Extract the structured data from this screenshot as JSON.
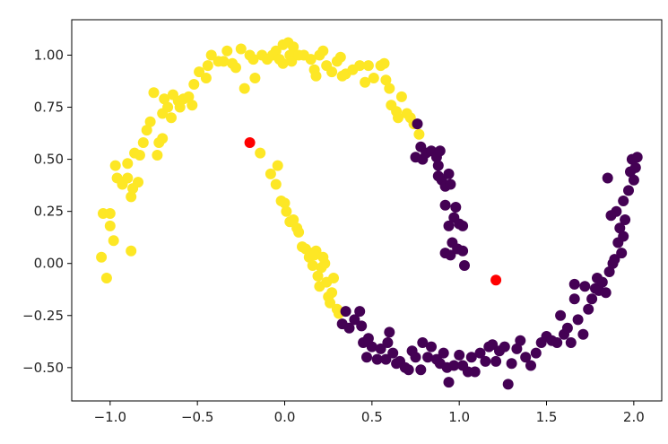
{
  "chart_data": {
    "type": "scatter",
    "title": "",
    "xlabel": "",
    "ylabel": "",
    "xlim": [
      -1.22,
      2.16
    ],
    "ylim": [
      -0.66,
      1.17
    ],
    "grid": false,
    "legend": "none",
    "x_ticks": [
      {
        "value": -1.0,
        "label": "−1.0"
      },
      {
        "value": -0.5,
        "label": "−0.5"
      },
      {
        "value": 0.0,
        "label": "0.0"
      },
      {
        "value": 0.5,
        "label": "0.5"
      },
      {
        "value": 1.0,
        "label": "1.0"
      },
      {
        "value": 1.5,
        "label": "1.5"
      },
      {
        "value": 2.0,
        "label": "2.0"
      }
    ],
    "y_ticks": [
      {
        "value": -0.5,
        "label": "−0.50"
      },
      {
        "value": -0.25,
        "label": "−0.25"
      },
      {
        "value": 0.0,
        "label": "0.00"
      },
      {
        "value": 0.25,
        "label": "0.25"
      },
      {
        "value": 0.5,
        "label": "0.50"
      },
      {
        "value": 0.75,
        "label": "0.75"
      },
      {
        "value": 1.0,
        "label": "1.00"
      }
    ],
    "series": [
      {
        "color": "#fde725",
        "points": [
          [
            -1.05,
            0.03
          ],
          [
            -1.02,
            -0.07
          ],
          [
            -1.04,
            0.24
          ],
          [
            -1.0,
            0.24
          ],
          [
            -0.98,
            0.11
          ],
          [
            -1.0,
            0.18
          ],
          [
            -0.96,
            0.41
          ],
          [
            -0.97,
            0.47
          ],
          [
            -0.93,
            0.38
          ],
          [
            -0.9,
            0.41
          ],
          [
            -0.9,
            0.48
          ],
          [
            -0.88,
            0.32
          ],
          [
            -0.87,
            0.36
          ],
          [
            -0.88,
            0.06
          ],
          [
            -0.86,
            0.53
          ],
          [
            -0.83,
            0.52
          ],
          [
            -0.84,
            0.39
          ],
          [
            -0.81,
            0.58
          ],
          [
            -0.79,
            0.64
          ],
          [
            -0.77,
            0.68
          ],
          [
            -0.75,
            0.82
          ],
          [
            -0.73,
            0.52
          ],
          [
            -0.72,
            0.58
          ],
          [
            -0.7,
            0.6
          ],
          [
            -0.7,
            0.72
          ],
          [
            -0.69,
            0.79
          ],
          [
            -0.67,
            0.75
          ],
          [
            -0.65,
            0.7
          ],
          [
            -0.64,
            0.81
          ],
          [
            -0.61,
            0.78
          ],
          [
            -0.6,
            0.75
          ],
          [
            -0.58,
            0.79
          ],
          [
            -0.55,
            0.8
          ],
          [
            -0.53,
            0.76
          ],
          [
            -0.52,
            0.86
          ],
          [
            -0.49,
            0.92
          ],
          [
            -0.45,
            0.89
          ],
          [
            -0.44,
            0.95
          ],
          [
            -0.42,
            1.0
          ],
          [
            -0.38,
            0.97
          ],
          [
            -0.35,
            0.97
          ],
          [
            -0.33,
            1.02
          ],
          [
            -0.3,
            0.96
          ],
          [
            -0.28,
            0.94
          ],
          [
            -0.25,
            1.03
          ],
          [
            -0.23,
            0.84
          ],
          [
            -0.2,
            1.0
          ],
          [
            -0.18,
            0.98
          ],
          [
            -0.17,
            0.89
          ],
          [
            -0.13,
            1.0
          ],
          [
            -0.1,
            0.98
          ],
          [
            -0.07,
            1.0
          ],
          [
            -0.05,
            1.02
          ],
          [
            -0.03,
            0.98
          ],
          [
            -0.01,
            0.96
          ],
          [
            -0.01,
            1.05
          ],
          [
            0.02,
            1.06
          ],
          [
            0.03,
            1.0
          ],
          [
            0.04,
            0.97
          ],
          [
            0.05,
            1.04
          ],
          [
            0.08,
            1.0
          ],
          [
            0.11,
            1.0
          ],
          [
            0.15,
            0.98
          ],
          [
            0.17,
            0.93
          ],
          [
            0.18,
            0.9
          ],
          [
            0.2,
            1.0
          ],
          [
            0.22,
            1.02
          ],
          [
            0.24,
            0.95
          ],
          [
            0.27,
            0.92
          ],
          [
            0.3,
            0.97
          ],
          [
            0.32,
            0.99
          ],
          [
            0.33,
            0.9
          ],
          [
            0.35,
            0.91
          ],
          [
            0.39,
            0.93
          ],
          [
            0.43,
            0.95
          ],
          [
            0.46,
            0.87
          ],
          [
            0.48,
            0.95
          ],
          [
            0.51,
            0.89
          ],
          [
            0.55,
            0.95
          ],
          [
            0.57,
            0.96
          ],
          [
            0.58,
            0.88
          ],
          [
            0.6,
            0.84
          ],
          [
            0.61,
            0.76
          ],
          [
            0.64,
            0.73
          ],
          [
            0.65,
            0.7
          ],
          [
            0.67,
            0.8
          ],
          [
            0.7,
            0.72
          ],
          [
            0.72,
            0.7
          ],
          [
            0.74,
            0.67
          ],
          [
            0.77,
            0.62
          ],
          [
            -0.14,
            0.53
          ],
          [
            -0.08,
            0.43
          ],
          [
            -0.05,
            0.38
          ],
          [
            -0.04,
            0.47
          ],
          [
            -0.02,
            0.3
          ],
          [
            0.0,
            0.29
          ],
          [
            0.01,
            0.25
          ],
          [
            0.03,
            0.2
          ],
          [
            0.05,
            0.21
          ],
          [
            0.07,
            0.17
          ],
          [
            0.08,
            0.15
          ],
          [
            0.1,
            0.08
          ],
          [
            0.12,
            0.07
          ],
          [
            0.14,
            0.03
          ],
          [
            0.16,
            -0.01
          ],
          [
            0.15,
            0.05
          ],
          [
            0.18,
            0.06
          ],
          [
            0.19,
            -0.06
          ],
          [
            0.2,
            -0.11
          ],
          [
            0.21,
            -0.02
          ],
          [
            0.23,
            0.0
          ],
          [
            0.24,
            -0.09
          ],
          [
            0.25,
            -0.16
          ],
          [
            0.26,
            -0.19
          ],
          [
            0.27,
            -0.14
          ],
          [
            0.28,
            -0.07
          ],
          [
            0.3,
            -0.22
          ],
          [
            0.31,
            -0.24
          ],
          [
            0.17,
            0.04
          ],
          [
            0.22,
            0.03
          ]
        ]
      },
      {
        "color": "#440154",
        "points": [
          [
            0.76,
            0.67
          ],
          [
            0.78,
            0.56
          ],
          [
            0.75,
            0.51
          ],
          [
            0.79,
            0.5
          ],
          [
            0.81,
            0.53
          ],
          [
            0.84,
            0.54
          ],
          [
            0.87,
            0.51
          ],
          [
            0.89,
            0.54
          ],
          [
            0.88,
            0.47
          ],
          [
            0.88,
            0.42
          ],
          [
            0.9,
            0.4
          ],
          [
            0.92,
            0.37
          ],
          [
            0.94,
            0.43
          ],
          [
            0.95,
            0.38
          ],
          [
            0.92,
            0.28
          ],
          [
            0.98,
            0.27
          ],
          [
            0.97,
            0.22
          ],
          [
            0.94,
            0.18
          ],
          [
            1.0,
            0.19
          ],
          [
            1.02,
            0.18
          ],
          [
            0.96,
            0.1
          ],
          [
            0.92,
            0.05
          ],
          [
            0.95,
            0.04
          ],
          [
            0.99,
            0.07
          ],
          [
            1.02,
            0.06
          ],
          [
            1.03,
            -0.01
          ],
          [
            0.35,
            -0.23
          ],
          [
            0.33,
            -0.29
          ],
          [
            0.37,
            -0.31
          ],
          [
            0.4,
            -0.27
          ],
          [
            0.43,
            -0.23
          ],
          [
            0.44,
            -0.3
          ],
          [
            0.45,
            -0.38
          ],
          [
            0.47,
            -0.45
          ],
          [
            0.48,
            -0.36
          ],
          [
            0.5,
            -0.4
          ],
          [
            0.53,
            -0.46
          ],
          [
            0.55,
            -0.41
          ],
          [
            0.58,
            -0.46
          ],
          [
            0.59,
            -0.38
          ],
          [
            0.6,
            -0.33
          ],
          [
            0.62,
            -0.43
          ],
          [
            0.64,
            -0.48
          ],
          [
            0.66,
            -0.47
          ],
          [
            0.69,
            -0.5
          ],
          [
            0.71,
            -0.51
          ],
          [
            0.73,
            -0.42
          ],
          [
            0.75,
            -0.45
          ],
          [
            0.78,
            -0.51
          ],
          [
            0.79,
            -0.38
          ],
          [
            0.82,
            -0.45
          ],
          [
            0.84,
            -0.4
          ],
          [
            0.87,
            -0.46
          ],
          [
            0.89,
            -0.48
          ],
          [
            0.91,
            -0.43
          ],
          [
            0.93,
            -0.5
          ],
          [
            0.94,
            -0.57
          ],
          [
            0.97,
            -0.49
          ],
          [
            1.0,
            -0.44
          ],
          [
            1.02,
            -0.49
          ],
          [
            1.05,
            -0.52
          ],
          [
            1.07,
            -0.45
          ],
          [
            1.09,
            -0.52
          ],
          [
            1.12,
            -0.43
          ],
          [
            1.15,
            -0.47
          ],
          [
            1.17,
            -0.4
          ],
          [
            1.19,
            -0.39
          ],
          [
            1.21,
            -0.47
          ],
          [
            1.23,
            -0.42
          ],
          [
            1.26,
            -0.4
          ],
          [
            1.28,
            -0.58
          ],
          [
            1.3,
            -0.48
          ],
          [
            1.33,
            -0.41
          ],
          [
            1.35,
            -0.37
          ],
          [
            1.38,
            -0.45
          ],
          [
            1.41,
            -0.49
          ],
          [
            1.44,
            -0.43
          ],
          [
            1.47,
            -0.38
          ],
          [
            1.5,
            -0.35
          ],
          [
            1.53,
            -0.37
          ],
          [
            1.56,
            -0.38
          ],
          [
            1.58,
            -0.25
          ],
          [
            1.6,
            -0.34
          ],
          [
            1.62,
            -0.31
          ],
          [
            1.64,
            -0.38
          ],
          [
            1.66,
            -0.17
          ],
          [
            1.68,
            -0.27
          ],
          [
            1.71,
            -0.34
          ],
          [
            1.74,
            -0.22
          ],
          [
            1.76,
            -0.17
          ],
          [
            1.78,
            -0.12
          ],
          [
            1.8,
            -0.13
          ],
          [
            1.82,
            -0.09
          ],
          [
            1.84,
            -0.14
          ],
          [
            1.86,
            -0.04
          ],
          [
            1.88,
            0.0
          ],
          [
            1.89,
            0.02
          ],
          [
            1.91,
            0.1
          ],
          [
            1.93,
            0.05
          ],
          [
            1.92,
            0.17
          ],
          [
            1.95,
            0.21
          ],
          [
            1.94,
            0.3
          ],
          [
            1.97,
            0.35
          ],
          [
            1.98,
            0.44
          ],
          [
            1.99,
            0.5
          ],
          [
            2.01,
            0.46
          ],
          [
            2.02,
            0.51
          ],
          [
            2.0,
            0.4
          ],
          [
            1.85,
            0.41
          ],
          [
            1.9,
            0.25
          ],
          [
            1.87,
            0.23
          ],
          [
            1.94,
            0.13
          ],
          [
            1.79,
            -0.07
          ],
          [
            1.72,
            -0.11
          ],
          [
            1.66,
            -0.1
          ]
        ]
      },
      {
        "color": "#ff0000",
        "points": [
          [
            -0.2,
            0.58
          ],
          [
            1.21,
            -0.08
          ]
        ]
      }
    ]
  }
}
